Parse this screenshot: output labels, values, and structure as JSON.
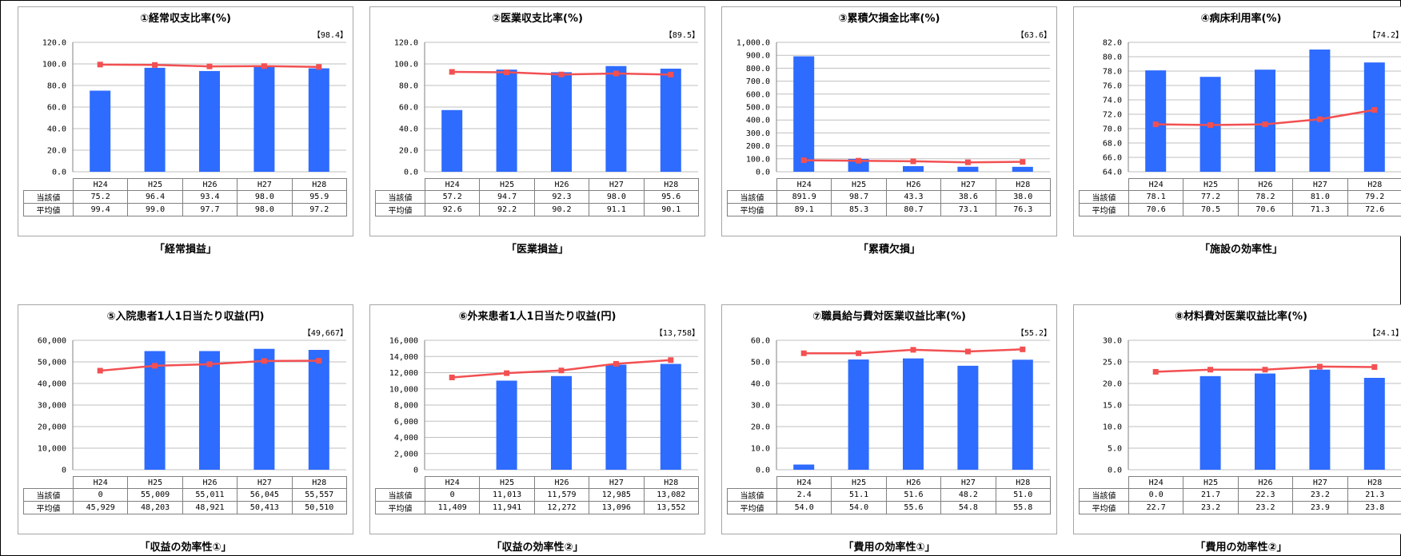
{
  "labels": {
    "row_current": "当該値",
    "row_average": "平均値"
  },
  "colors": {
    "bar": "#2e6bff",
    "line": "#f25052",
    "grid": "#bfbfbf"
  },
  "chart_data": [
    {
      "type": "bar",
      "title": "①経常収支比率(%)",
      "reference": "【98.4】",
      "caption": "「経常損益」",
      "categories": [
        "H24",
        "H25",
        "H26",
        "H27",
        "H28"
      ],
      "series": [
        {
          "name": "当該値",
          "kind": "bar",
          "values": [
            75.2,
            96.4,
            93.4,
            98.0,
            95.9
          ],
          "display": [
            "75.2",
            "96.4",
            "93.4",
            "98.0",
            "95.9"
          ]
        },
        {
          "name": "平均値",
          "kind": "line",
          "values": [
            99.4,
            99.0,
            97.7,
            98.0,
            97.2
          ],
          "display": [
            "99.4",
            "99.0",
            "97.7",
            "98.0",
            "97.2"
          ]
        }
      ],
      "ylim": [
        0,
        120
      ],
      "yticks": [
        "0.0",
        "20.0",
        "40.0",
        "60.0",
        "80.0",
        "100.0",
        "120.0"
      ]
    },
    {
      "type": "bar",
      "title": "②医業収支比率(%)",
      "reference": "【89.5】",
      "caption": "「医業損益」",
      "categories": [
        "H24",
        "H25",
        "H26",
        "H27",
        "H28"
      ],
      "series": [
        {
          "name": "当該値",
          "kind": "bar",
          "values": [
            57.2,
            94.7,
            92.3,
            98.0,
            95.6
          ],
          "display": [
            "57.2",
            "94.7",
            "92.3",
            "98.0",
            "95.6"
          ]
        },
        {
          "name": "平均値",
          "kind": "line",
          "values": [
            92.6,
            92.2,
            90.2,
            91.1,
            90.1
          ],
          "display": [
            "92.6",
            "92.2",
            "90.2",
            "91.1",
            "90.1"
          ]
        }
      ],
      "ylim": [
        0,
        120
      ],
      "yticks": [
        "0.0",
        "20.0",
        "40.0",
        "60.0",
        "80.0",
        "100.0",
        "120.0"
      ]
    },
    {
      "type": "bar",
      "title": "③累積欠損金比率(%)",
      "reference": "【63.6】",
      "caption": "「累積欠損」",
      "categories": [
        "H24",
        "H25",
        "H26",
        "H27",
        "H28"
      ],
      "series": [
        {
          "name": "当該値",
          "kind": "bar",
          "values": [
            891.9,
            98.7,
            43.3,
            38.6,
            38.0
          ],
          "display": [
            "891.9",
            "98.7",
            "43.3",
            "38.6",
            "38.0"
          ]
        },
        {
          "name": "平均値",
          "kind": "line",
          "values": [
            89.1,
            85.3,
            80.7,
            73.1,
            76.3
          ],
          "display": [
            "89.1",
            "85.3",
            "80.7",
            "73.1",
            "76.3"
          ]
        }
      ],
      "ylim": [
        0,
        1000
      ],
      "yticks": [
        "0.0",
        "100.0",
        "200.0",
        "300.0",
        "400.0",
        "500.0",
        "600.0",
        "700.0",
        "800.0",
        "900.0",
        "1,000.0"
      ]
    },
    {
      "type": "bar",
      "title": "④病床利用率(%)",
      "reference": "【74.2】",
      "caption": "「施設の効率性」",
      "categories": [
        "H24",
        "H25",
        "H26",
        "H27",
        "H28"
      ],
      "series": [
        {
          "name": "当該値",
          "kind": "bar",
          "values": [
            78.1,
            77.2,
            78.2,
            81.0,
            79.2
          ],
          "display": [
            "78.1",
            "77.2",
            "78.2",
            "81.0",
            "79.2"
          ]
        },
        {
          "name": "平均値",
          "kind": "line",
          "values": [
            70.6,
            70.5,
            70.6,
            71.3,
            72.6
          ],
          "display": [
            "70.6",
            "70.5",
            "70.6",
            "71.3",
            "72.6"
          ]
        }
      ],
      "ylim": [
        64,
        82
      ],
      "yticks": [
        "64.0",
        "66.0",
        "68.0",
        "70.0",
        "72.0",
        "74.0",
        "76.0",
        "78.0",
        "80.0",
        "82.0"
      ]
    },
    {
      "type": "bar",
      "title": "⑤入院患者1人1日当たり収益(円)",
      "reference": "【49,667】",
      "caption": "「収益の効率性①」",
      "categories": [
        "H24",
        "H25",
        "H26",
        "H27",
        "H28"
      ],
      "series": [
        {
          "name": "当該値",
          "kind": "bar",
          "values": [
            0,
            55009,
            55011,
            56045,
            55557
          ],
          "display": [
            "0",
            "55,009",
            "55,011",
            "56,045",
            "55,557"
          ]
        },
        {
          "name": "平均値",
          "kind": "line",
          "values": [
            45929,
            48203,
            48921,
            50413,
            50510
          ],
          "display": [
            "45,929",
            "48,203",
            "48,921",
            "50,413",
            "50,510"
          ]
        }
      ],
      "ylim": [
        0,
        60000
      ],
      "yticks": [
        "0",
        "10,000",
        "20,000",
        "30,000",
        "40,000",
        "50,000",
        "60,000"
      ]
    },
    {
      "type": "bar",
      "title": "⑥外来患者1人1日当たり収益(円)",
      "reference": "【13,758】",
      "caption": "「収益の効率性②」",
      "categories": [
        "H24",
        "H25",
        "H26",
        "H27",
        "H28"
      ],
      "series": [
        {
          "name": "当該値",
          "kind": "bar",
          "values": [
            0,
            11013,
            11579,
            12985,
            13082
          ],
          "display": [
            "0",
            "11,013",
            "11,579",
            "12,985",
            "13,082"
          ]
        },
        {
          "name": "平均値",
          "kind": "line",
          "values": [
            11409,
            11941,
            12272,
            13096,
            13552
          ],
          "display": [
            "11,409",
            "11,941",
            "12,272",
            "13,096",
            "13,552"
          ]
        }
      ],
      "ylim": [
        0,
        16000
      ],
      "yticks": [
        "0",
        "2,000",
        "4,000",
        "6,000",
        "8,000",
        "10,000",
        "12,000",
        "14,000",
        "16,000"
      ]
    },
    {
      "type": "bar",
      "title": "⑦職員給与費対医業収益比率(%)",
      "reference": "【55.2】",
      "caption": "「費用の効率性①」",
      "categories": [
        "H24",
        "H25",
        "H26",
        "H27",
        "H28"
      ],
      "series": [
        {
          "name": "当該値",
          "kind": "bar",
          "values": [
            2.4,
            51.1,
            51.6,
            48.2,
            51.0
          ],
          "display": [
            "2.4",
            "51.1",
            "51.6",
            "48.2",
            "51.0"
          ]
        },
        {
          "name": "平均値",
          "kind": "line",
          "values": [
            54.0,
            54.0,
            55.6,
            54.8,
            55.8
          ],
          "display": [
            "54.0",
            "54.0",
            "55.6",
            "54.8",
            "55.8"
          ]
        }
      ],
      "ylim": [
        0,
        60
      ],
      "yticks": [
        "0.0",
        "10.0",
        "20.0",
        "30.0",
        "40.0",
        "50.0",
        "60.0"
      ]
    },
    {
      "type": "bar",
      "title": "⑧材料費対医業収益比率(%)",
      "reference": "【24.1】",
      "caption": "「費用の効率性②」",
      "categories": [
        "H24",
        "H25",
        "H26",
        "H27",
        "H28"
      ],
      "series": [
        {
          "name": "当該値",
          "kind": "bar",
          "values": [
            0.0,
            21.7,
            22.3,
            23.2,
            21.3
          ],
          "display": [
            "0.0",
            "21.7",
            "22.3",
            "23.2",
            "21.3"
          ]
        },
        {
          "name": "平均値",
          "kind": "line",
          "values": [
            22.7,
            23.2,
            23.2,
            23.9,
            23.8
          ],
          "display": [
            "22.7",
            "23.2",
            "23.2",
            "23.9",
            "23.8"
          ]
        }
      ],
      "ylim": [
        0,
        30
      ],
      "yticks": [
        "0.0",
        "5.0",
        "10.0",
        "15.0",
        "20.0",
        "25.0",
        "30.0"
      ]
    }
  ]
}
